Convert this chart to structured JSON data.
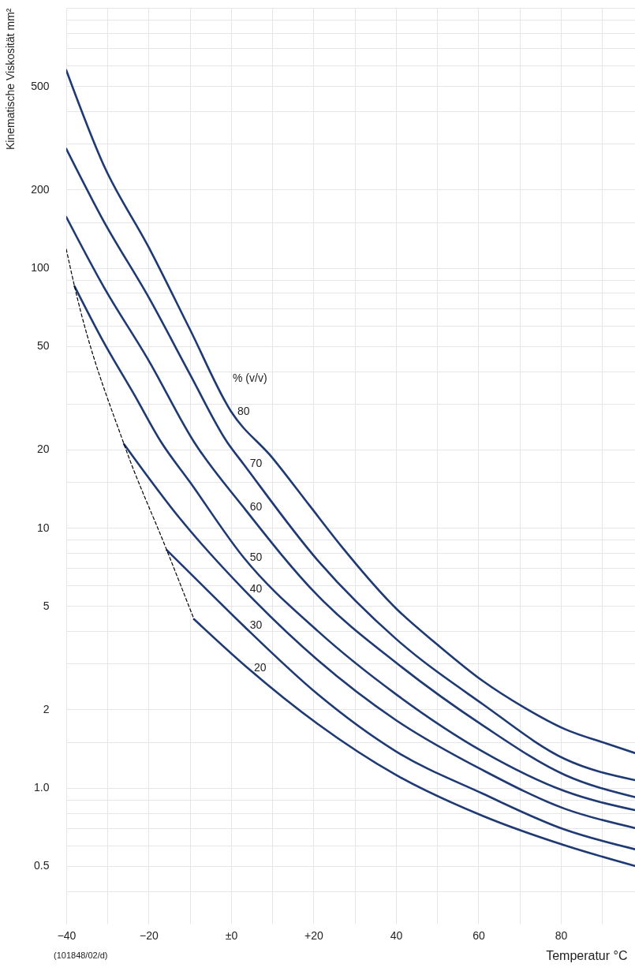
{
  "chart_data": {
    "type": "line",
    "xlabel": "Temperatur °C",
    "ylabel": "Kinematische Viskosität mm²",
    "legend_title": "% (v/v)",
    "log": "y",
    "grid": true,
    "xlim": [
      -40,
      98
    ],
    "ylim": [
      0.3,
      1000
    ],
    "xticks": [
      {
        "value": -40,
        "label": "−40"
      },
      {
        "value": -30,
        "label": null
      },
      {
        "value": -20,
        "label": "−20"
      },
      {
        "value": -10,
        "label": null
      },
      {
        "value": 0,
        "label": "±0"
      },
      {
        "value": 10,
        "label": null
      },
      {
        "value": 20,
        "label": "+20"
      },
      {
        "value": 30,
        "label": null
      },
      40,
      {
        "value": 50,
        "label": null
      },
      60,
      {
        "value": 70,
        "label": null
      },
      80,
      {
        "value": 90,
        "label": null
      }
    ],
    "yticks": [
      {
        "value": 0.4,
        "label": null
      },
      0.5,
      {
        "value": 0.6,
        "label": null
      },
      {
        "value": 0.7,
        "label": null
      },
      {
        "value": 0.8,
        "label": null
      },
      {
        "value": 0.9,
        "label": null
      },
      {
        "value": 1,
        "label": "1.0"
      },
      {
        "value": 1.5,
        "label": null
      },
      2,
      {
        "value": 3,
        "label": null
      },
      {
        "value": 4,
        "label": null
      },
      5,
      {
        "value": 6,
        "label": null
      },
      {
        "value": 7,
        "label": null
      },
      {
        "value": 8,
        "label": null
      },
      {
        "value": 9,
        "label": null
      },
      10,
      {
        "value": 15,
        "label": null
      },
      20,
      {
        "value": 30,
        "label": null
      },
      {
        "value": 40,
        "label": null
      },
      50,
      {
        "value": 60,
        "label": null
      },
      {
        "value": 70,
        "label": null
      },
      {
        "value": 80,
        "label": null
      },
      {
        "value": 90,
        "label": null
      },
      100,
      {
        "value": 150,
        "label": null
      },
      200,
      {
        "value": 300,
        "label": null
      },
      {
        "value": 400,
        "label": null
      },
      500,
      {
        "value": 600,
        "label": null
      },
      {
        "value": 700,
        "label": null
      },
      {
        "value": 800,
        "label": null
      },
      {
        "value": 900,
        "label": null
      },
      {
        "value": 1000,
        "label": null
      }
    ],
    "annotations": [
      "(101848/02/d)"
    ],
    "series": [
      {
        "name": "80",
        "color": "#1f3a73",
        "x": [
          -40,
          -31,
          -20,
          -10,
          0,
          10,
          19,
          27,
          40,
          50,
          61,
          71,
          81,
          91,
          98
        ],
        "values": [
          576,
          250,
          120,
          58,
          28,
          18.6,
          12.2,
          8.4,
          4.9,
          3.56,
          2.58,
          2.04,
          1.68,
          1.48,
          1.36
        ]
      },
      {
        "name": "70",
        "color": "#1f3a73",
        "x": [
          -40,
          -31,
          -20,
          -10,
          -1,
          3,
          21,
          40,
          61,
          81,
          98
        ],
        "values": [
          287,
          152,
          77,
          39,
          21.4,
          17.6,
          7.5,
          3.74,
          2.1,
          1.29,
          1.07
        ]
      },
      {
        "name": "60",
        "color": "#1f3a73",
        "x": [
          -40,
          -31,
          -20,
          -9,
          3,
          21,
          40,
          61,
          81,
          98
        ],
        "values": [
          157,
          85,
          44,
          21.4,
          12,
          5.49,
          3.03,
          1.74,
          1.12,
          0.92
        ]
      },
      {
        "name": "50",
        "color": "#1f3a73",
        "x": [
          -38,
          -31,
          -23.5,
          -17,
          -10,
          3,
          21,
          40,
          61,
          81,
          98
        ],
        "values": [
          85,
          52,
          32.5,
          21.4,
          15,
          7.7,
          4.01,
          2.29,
          1.38,
          0.97,
          0.82
        ]
      },
      {
        "name": "40",
        "color": "#1f3a73",
        "x": [
          -26,
          -12.5,
          3,
          21,
          40,
          61,
          81,
          98
        ],
        "values": [
          21,
          10.9,
          5.8,
          3.1,
          1.82,
          1.17,
          0.83,
          0.7
        ]
      },
      {
        "name": "30",
        "color": "#1f3a73",
        "x": [
          -15.6,
          -6,
          3,
          21,
          40,
          61,
          81,
          98
        ],
        "values": [
          8.2,
          5.8,
          4.2,
          2.29,
          1.38,
          0.95,
          0.69,
          0.58
        ]
      },
      {
        "name": "20",
        "color": "#1f3a73",
        "x": [
          -9,
          4,
          21,
          40,
          61,
          81,
          98
        ],
        "values": [
          4.45,
          2.89,
          1.76,
          1.12,
          0.78,
          0.6,
          0.5
        ]
      },
      {
        "color": "#000000",
        "line_style": "dashed",
        "x": [
          -40,
          -38,
          -26,
          -15.6,
          -9
        ],
        "values": [
          118,
          85,
          21,
          8.2,
          4.45
        ]
      }
    ]
  }
}
